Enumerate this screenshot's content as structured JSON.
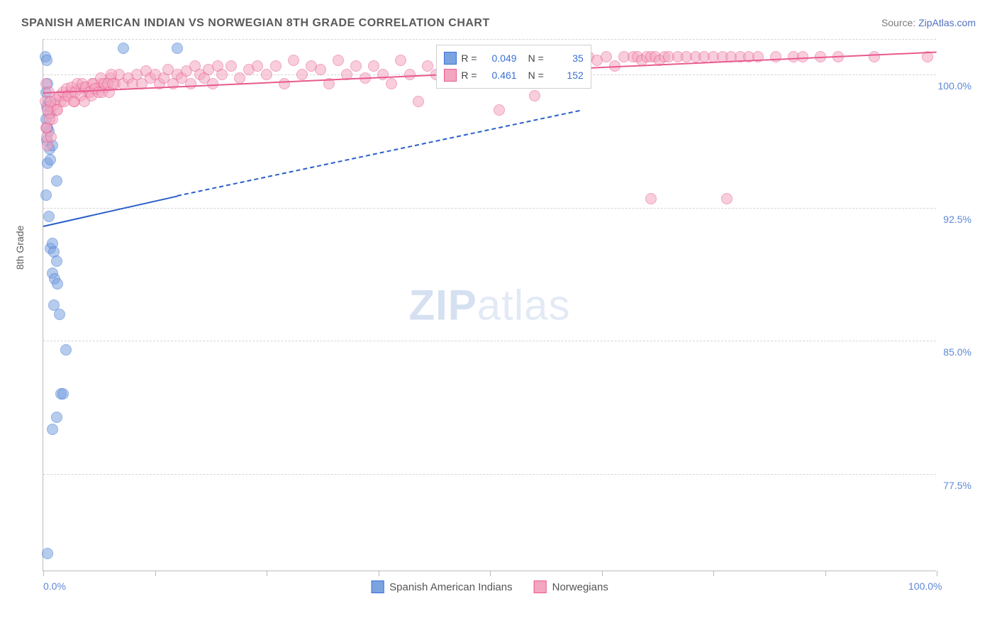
{
  "title": "SPANISH AMERICAN INDIAN VS NORWEGIAN 8TH GRADE CORRELATION CHART",
  "source_prefix": "Source: ",
  "source_name": "ZipAtlas.com",
  "watermark_bold": "ZIP",
  "watermark_light": "atlas",
  "chart": {
    "type": "scatter",
    "xlim": [
      0,
      100
    ],
    "ylim": [
      72,
      102
    ],
    "y_gridlines": [
      77.5,
      85.0,
      92.5,
      100.0,
      102.0
    ],
    "y_tick_labels": [
      "77.5%",
      "85.0%",
      "92.5%",
      "100.0%"
    ],
    "x_ticks": [
      0,
      12.5,
      25,
      37.5,
      50,
      62.5,
      75,
      87.5,
      100
    ],
    "x_tick_labels_shown": {
      "0": "0.0%",
      "100": "100.0%"
    },
    "y_axis_title": "8th Grade",
    "background_color": "#ffffff",
    "grid_color": "#d5d5d5",
    "axis_color": "#bbbbbb",
    "label_color": "#5c88d6",
    "title_color": "#5a5a5a",
    "title_fontsize": 16,
    "label_fontsize": 14,
    "marker_radius": 8,
    "marker_opacity": 0.55,
    "series": [
      {
        "name": "Spanish American Indians",
        "color_fill": "#7ba3e0",
        "color_stroke": "#3a6fd8",
        "R": "0.049",
        "N": "35",
        "trend": {
          "x1": 0,
          "y1": 91.5,
          "x2": 15,
          "y2": 93.2,
          "dash_to_x": 60,
          "dash_to_y": 98.0,
          "color": "#2a5fc8"
        },
        "points": [
          [
            0.2,
            101.0
          ],
          [
            0.4,
            100.8
          ],
          [
            9.0,
            101.5
          ],
          [
            15.0,
            101.5
          ],
          [
            0.3,
            97.5
          ],
          [
            0.5,
            97.0
          ],
          [
            0.6,
            96.8
          ],
          [
            0.4,
            96.3
          ],
          [
            0.7,
            95.8
          ],
          [
            0.5,
            95.0
          ],
          [
            0.8,
            95.2
          ],
          [
            0.3,
            93.2
          ],
          [
            0.6,
            92.0
          ],
          [
            0.8,
            90.2
          ],
          [
            1.0,
            90.5
          ],
          [
            1.2,
            90.0
          ],
          [
            1.5,
            89.5
          ],
          [
            1.0,
            88.8
          ],
          [
            1.3,
            88.5
          ],
          [
            1.6,
            88.2
          ],
          [
            1.2,
            87.0
          ],
          [
            1.8,
            86.5
          ],
          [
            2.5,
            84.5
          ],
          [
            2.0,
            82.0
          ],
          [
            2.2,
            82.0
          ],
          [
            1.5,
            80.7
          ],
          [
            1.0,
            80.0
          ],
          [
            0.5,
            73.0
          ],
          [
            0.4,
            98.2
          ],
          [
            0.6,
            98.5
          ],
          [
            0.3,
            99.0
          ],
          [
            0.5,
            99.5
          ],
          [
            0.8,
            97.8
          ],
          [
            1.0,
            96.0
          ],
          [
            1.5,
            94.0
          ]
        ]
      },
      {
        "name": "Norwegians",
        "color_fill": "#f4a6c0",
        "color_stroke": "#e85a8e",
        "R": "0.461",
        "N": "152",
        "trend": {
          "x1": 0,
          "y1": 99.0,
          "x2": 100,
          "y2": 101.3,
          "color": "#e85a8e"
        },
        "points": [
          [
            0.5,
            96.0
          ],
          [
            1.0,
            97.5
          ],
          [
            1.5,
            98.0
          ],
          [
            2.0,
            98.5
          ],
          [
            2.5,
            98.8
          ],
          [
            3.0,
            99.0
          ],
          [
            3.5,
            98.5
          ],
          [
            4.0,
            99.2
          ],
          [
            4.5,
            99.3
          ],
          [
            5.0,
            99.0
          ],
          [
            5.5,
            99.5
          ],
          [
            6.0,
            99.2
          ],
          [
            6.5,
            99.5
          ],
          [
            7.0,
            99.3
          ],
          [
            7.5,
            99.8
          ],
          [
            8.0,
            99.5
          ],
          [
            8.5,
            100.0
          ],
          [
            9.0,
            99.5
          ],
          [
            9.5,
            99.8
          ],
          [
            10.0,
            99.5
          ],
          [
            10.5,
            100.0
          ],
          [
            11.0,
            99.5
          ],
          [
            11.5,
            100.2
          ],
          [
            12.0,
            99.8
          ],
          [
            12.5,
            100.0
          ],
          [
            13.0,
            99.5
          ],
          [
            13.5,
            99.8
          ],
          [
            14.0,
            100.3
          ],
          [
            14.5,
            99.5
          ],
          [
            15.0,
            100.0
          ],
          [
            15.5,
            99.8
          ],
          [
            16.0,
            100.2
          ],
          [
            16.5,
            99.5
          ],
          [
            17.0,
            100.5
          ],
          [
            17.5,
            100.0
          ],
          [
            18.0,
            99.8
          ],
          [
            18.5,
            100.3
          ],
          [
            19.0,
            99.5
          ],
          [
            19.5,
            100.5
          ],
          [
            20.0,
            100.0
          ],
          [
            21.0,
            100.5
          ],
          [
            22.0,
            99.8
          ],
          [
            23.0,
            100.3
          ],
          [
            24.0,
            100.5
          ],
          [
            25.0,
            100.0
          ],
          [
            26.0,
            100.5
          ],
          [
            27.0,
            99.5
          ],
          [
            28.0,
            100.8
          ],
          [
            29.0,
            100.0
          ],
          [
            30.0,
            100.5
          ],
          [
            31.0,
            100.3
          ],
          [
            32.0,
            99.5
          ],
          [
            33.0,
            100.8
          ],
          [
            34.0,
            100.0
          ],
          [
            35.0,
            100.5
          ],
          [
            36.0,
            99.8
          ],
          [
            37.0,
            100.5
          ],
          [
            38.0,
            100.0
          ],
          [
            39.0,
            99.5
          ],
          [
            40.0,
            100.8
          ],
          [
            41.0,
            100.0
          ],
          [
            42.0,
            98.5
          ],
          [
            43.0,
            100.5
          ],
          [
            44.0,
            100.0
          ],
          [
            45.0,
            100.5
          ],
          [
            46.0,
            100.8
          ],
          [
            47.0,
            100.0
          ],
          [
            48.0,
            100.5
          ],
          [
            49.0,
            100.3
          ],
          [
            50.0,
            100.5
          ],
          [
            51.0,
            98.0
          ],
          [
            52.0,
            100.8
          ],
          [
            53.0,
            100.0
          ],
          [
            54.0,
            100.5
          ],
          [
            55.0,
            98.8
          ],
          [
            56.0,
            100.8
          ],
          [
            58.0,
            100.5
          ],
          [
            59.0,
            101.0
          ],
          [
            60.0,
            100.5
          ],
          [
            61.0,
            101.0
          ],
          [
            62.0,
            100.8
          ],
          [
            63.0,
            101.0
          ],
          [
            64.0,
            100.5
          ],
          [
            65.0,
            101.0
          ],
          [
            66.0,
            101.0
          ],
          [
            66.5,
            101.0
          ],
          [
            67.0,
            100.8
          ],
          [
            67.5,
            101.0
          ],
          [
            68.0,
            101.0
          ],
          [
            68.5,
            101.0
          ],
          [
            69.0,
            100.8
          ],
          [
            69.5,
            101.0
          ],
          [
            70.0,
            101.0
          ],
          [
            71.0,
            101.0
          ],
          [
            72.0,
            101.0
          ],
          [
            73.0,
            101.0
          ],
          [
            74.0,
            101.0
          ],
          [
            75.0,
            101.0
          ],
          [
            76.0,
            101.0
          ],
          [
            77.0,
            101.0
          ],
          [
            78.0,
            101.0
          ],
          [
            79.0,
            101.0
          ],
          [
            80.0,
            101.0
          ],
          [
            82.0,
            101.0
          ],
          [
            84.0,
            101.0
          ],
          [
            85.0,
            101.0
          ],
          [
            87.0,
            101.0
          ],
          [
            89.0,
            101.0
          ],
          [
            93.0,
            101.0
          ],
          [
            99.0,
            101.0
          ],
          [
            0.3,
            97.0
          ],
          [
            0.4,
            96.5
          ],
          [
            0.6,
            97.8
          ],
          [
            0.8,
            98.2
          ],
          [
            1.2,
            98.3
          ],
          [
            1.4,
            98.6
          ],
          [
            1.6,
            98.0
          ],
          [
            1.8,
            98.8
          ],
          [
            2.2,
            99.0
          ],
          [
            2.4,
            98.5
          ],
          [
            2.6,
            99.2
          ],
          [
            2.8,
            98.8
          ],
          [
            3.2,
            99.3
          ],
          [
            3.4,
            98.5
          ],
          [
            3.6,
            99.0
          ],
          [
            3.8,
            99.5
          ],
          [
            4.2,
            98.8
          ],
          [
            4.4,
            99.5
          ],
          [
            4.6,
            98.5
          ],
          [
            4.8,
            99.3
          ],
          [
            5.2,
            99.0
          ],
          [
            5.4,
            98.8
          ],
          [
            5.6,
            99.5
          ],
          [
            5.8,
            99.2
          ],
          [
            6.2,
            99.0
          ],
          [
            6.4,
            99.8
          ],
          [
            6.6,
            99.0
          ],
          [
            6.8,
            99.5
          ],
          [
            7.2,
            99.5
          ],
          [
            7.4,
            99.0
          ],
          [
            7.6,
            100.0
          ],
          [
            7.8,
            99.5
          ],
          [
            68.0,
            93.0
          ],
          [
            76.5,
            93.0
          ],
          [
            0.2,
            98.5
          ],
          [
            0.3,
            99.5
          ],
          [
            0.4,
            97.0
          ],
          [
            0.5,
            98.0
          ],
          [
            0.6,
            99.0
          ],
          [
            0.7,
            97.5
          ],
          [
            0.8,
            98.5
          ],
          [
            0.9,
            96.5
          ]
        ]
      }
    ],
    "legend_stats": {
      "R_label": "R =",
      "N_label": "N ="
    },
    "bottom_legend": [
      {
        "label": "Spanish American Indians",
        "fill": "#7ba3e0",
        "stroke": "#3a6fd8"
      },
      {
        "label": "Norwegians",
        "fill": "#f4a6c0",
        "stroke": "#e85a8e"
      }
    ]
  }
}
